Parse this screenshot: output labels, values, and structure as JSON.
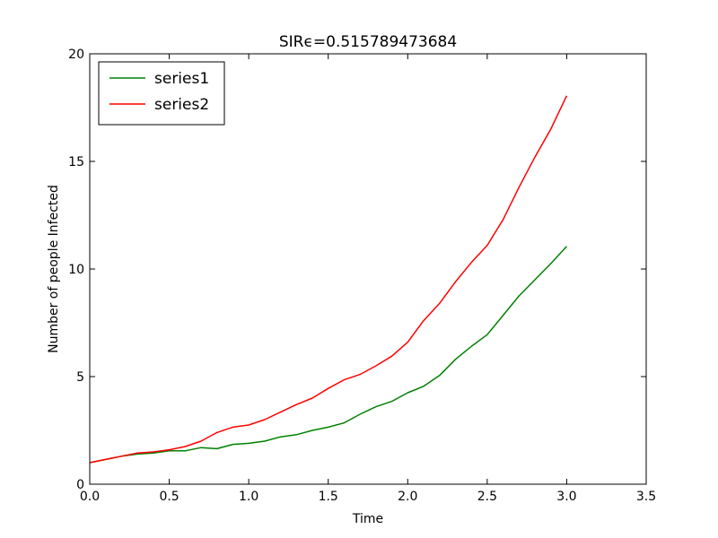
{
  "chart_data": {
    "type": "line",
    "title": "SIRϵ=0.515789473684",
    "xlabel": "Time",
    "ylabel": "Number of people Infected",
    "xlim": [
      0,
      3.5
    ],
    "ylim": [
      0,
      20
    ],
    "xticks": [
      0.0,
      0.5,
      1.0,
      1.5,
      2.0,
      2.5,
      3.0,
      3.5
    ],
    "xtick_labels": [
      "0.0",
      "0.5",
      "1.0",
      "1.5",
      "2.0",
      "2.5",
      "3.0",
      "3.5"
    ],
    "yticks": [
      0,
      5,
      10,
      15,
      20
    ],
    "ytick_labels": [
      "0",
      "5",
      "10",
      "15",
      "20"
    ],
    "grid": false,
    "legend_position": "top-left",
    "series": [
      {
        "name": "series1",
        "color": "#008000",
        "x": [
          0,
          0.1,
          0.2,
          0.3,
          0.4,
          0.5,
          0.6,
          0.7,
          0.8,
          0.9,
          1.0,
          1.1,
          1.2,
          1.3,
          1.4,
          1.5,
          1.6,
          1.7,
          1.8,
          1.9,
          2.0,
          2.1,
          2.2,
          2.3,
          2.4,
          2.5,
          2.6,
          2.7,
          2.8,
          2.9,
          3.0
        ],
        "values": [
          1.0,
          1.15,
          1.3,
          1.4,
          1.45,
          1.55,
          1.55,
          1.7,
          1.65,
          1.85,
          1.9,
          2.0,
          2.2,
          2.3,
          2.5,
          2.65,
          2.85,
          3.25,
          3.6,
          3.85,
          4.25,
          4.55,
          5.05,
          5.8,
          6.4,
          6.95,
          7.85,
          8.75,
          9.5,
          10.25,
          11.05
        ]
      },
      {
        "name": "series2",
        "color": "#ff0000",
        "x": [
          0,
          0.1,
          0.2,
          0.3,
          0.4,
          0.5,
          0.6,
          0.7,
          0.8,
          0.9,
          1.0,
          1.1,
          1.2,
          1.3,
          1.4,
          1.5,
          1.6,
          1.7,
          1.8,
          1.9,
          2.0,
          2.1,
          2.2,
          2.3,
          2.4,
          2.5,
          2.6,
          2.7,
          2.8,
          2.9,
          3.0
        ],
        "values": [
          1.0,
          1.15,
          1.3,
          1.45,
          1.5,
          1.6,
          1.75,
          2.0,
          2.4,
          2.65,
          2.75,
          3.0,
          3.35,
          3.7,
          4.0,
          4.45,
          4.85,
          5.1,
          5.5,
          5.95,
          6.6,
          7.6,
          8.4,
          9.4,
          10.3,
          11.1,
          12.3,
          13.8,
          15.2,
          16.5,
          18.05
        ]
      }
    ]
  }
}
